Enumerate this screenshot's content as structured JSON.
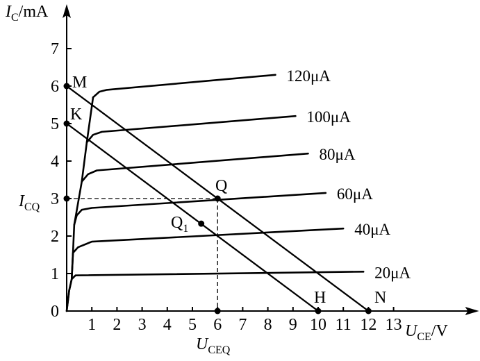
{
  "chart_data": {
    "type": "line",
    "x_axis": {
      "label_main": "U",
      "label_sub": "CE",
      "label_unit": "/V",
      "ticks": [
        1,
        2,
        3,
        4,
        5,
        6,
        7,
        8,
        9,
        10,
        11,
        12,
        13
      ],
      "range": [
        0,
        13.8
      ]
    },
    "y_axis": {
      "label_main": "I",
      "label_sub": "C",
      "label_unit": "/mA",
      "ticks": [
        0,
        1,
        2,
        3,
        4,
        5,
        6,
        7
      ],
      "range": [
        0,
        7.9
      ]
    },
    "series": [
      {
        "name": "20μA",
        "knee": 0.2,
        "sat": 0.95,
        "x_end": 11.8,
        "y_end": 1.05,
        "points": [
          [
            0,
            0
          ],
          [
            0.1,
            0.55
          ],
          [
            0.2,
            0.85
          ],
          [
            0.35,
            0.95
          ],
          [
            11.8,
            1.05
          ]
        ]
      },
      {
        "name": "40μA",
        "knee": 0.3,
        "sat": 1.8,
        "x_end": 11.0,
        "y_end": 2.2,
        "points": [
          [
            0.2,
            0.85
          ],
          [
            0.25,
            1.55
          ],
          [
            0.45,
            1.7
          ],
          [
            1.0,
            1.85
          ],
          [
            11.0,
            2.2
          ]
        ]
      },
      {
        "name": "60μA",
        "knee": 0.4,
        "sat": 2.75,
        "x_end": 10.3,
        "y_end": 3.15,
        "points": [
          [
            0.3,
            2.3
          ],
          [
            0.4,
            2.55
          ],
          [
            0.6,
            2.7
          ],
          [
            1.0,
            2.75
          ],
          [
            10.3,
            3.15
          ]
        ]
      },
      {
        "name": "80μA",
        "knee": 0.6,
        "sat": 3.75,
        "x_end": 9.6,
        "y_end": 4.2,
        "points": [
          [
            0.6,
            3.45
          ],
          [
            0.85,
            3.65
          ],
          [
            1.2,
            3.75
          ],
          [
            9.6,
            4.2
          ]
        ]
      },
      {
        "name": "100μA",
        "knee": 0.8,
        "sat": 4.75,
        "x_end": 9.1,
        "y_end": 5.2,
        "points": [
          [
            0.8,
            4.5
          ],
          [
            1.05,
            4.7
          ],
          [
            1.4,
            4.78
          ],
          [
            9.1,
            5.2
          ]
        ]
      },
      {
        "name": "120μA",
        "knee": 1.1,
        "sat": 5.9,
        "x_end": 8.3,
        "y_end": 6.3,
        "points": [
          [
            1.05,
            5.7
          ],
          [
            1.3,
            5.85
          ],
          [
            1.6,
            5.9
          ],
          [
            8.3,
            6.3
          ]
        ]
      }
    ],
    "envelope": [
      [
        0,
        0
      ],
      [
        0.1,
        0.55
      ],
      [
        0.2,
        0.85
      ],
      [
        0.25,
        1.55
      ],
      [
        0.3,
        2.3
      ],
      [
        0.6,
        3.45
      ],
      [
        0.8,
        4.5
      ],
      [
        1.05,
        5.7
      ]
    ],
    "load_lines": [
      {
        "name": "MN",
        "from": [
          0,
          6
        ],
        "to": [
          12,
          0
        ]
      },
      {
        "name": "KH",
        "from": [
          0,
          5
        ],
        "to": [
          10,
          0
        ]
      }
    ],
    "points": [
      {
        "name": "M",
        "x": 0,
        "y": 6
      },
      {
        "name": "K",
        "x": 0,
        "y": 5
      },
      {
        "name": "Q",
        "x": 6,
        "y": 3
      },
      {
        "name": "Q1",
        "x": 5.35,
        "y": 2.33
      },
      {
        "name": "H",
        "x": 10,
        "y": 0
      },
      {
        "name": "N",
        "x": 12,
        "y": 0
      }
    ],
    "annotations": {
      "icq_main": "I",
      "icq_sub": "CQ",
      "uceq_main": "U",
      "uceq_sub": "CEQ",
      "q_label": "Q",
      "q1_main": "Q",
      "q1_sub": "1",
      "m_label": "M",
      "k_label": "K",
      "h_label": "H",
      "n_label": "N"
    }
  }
}
